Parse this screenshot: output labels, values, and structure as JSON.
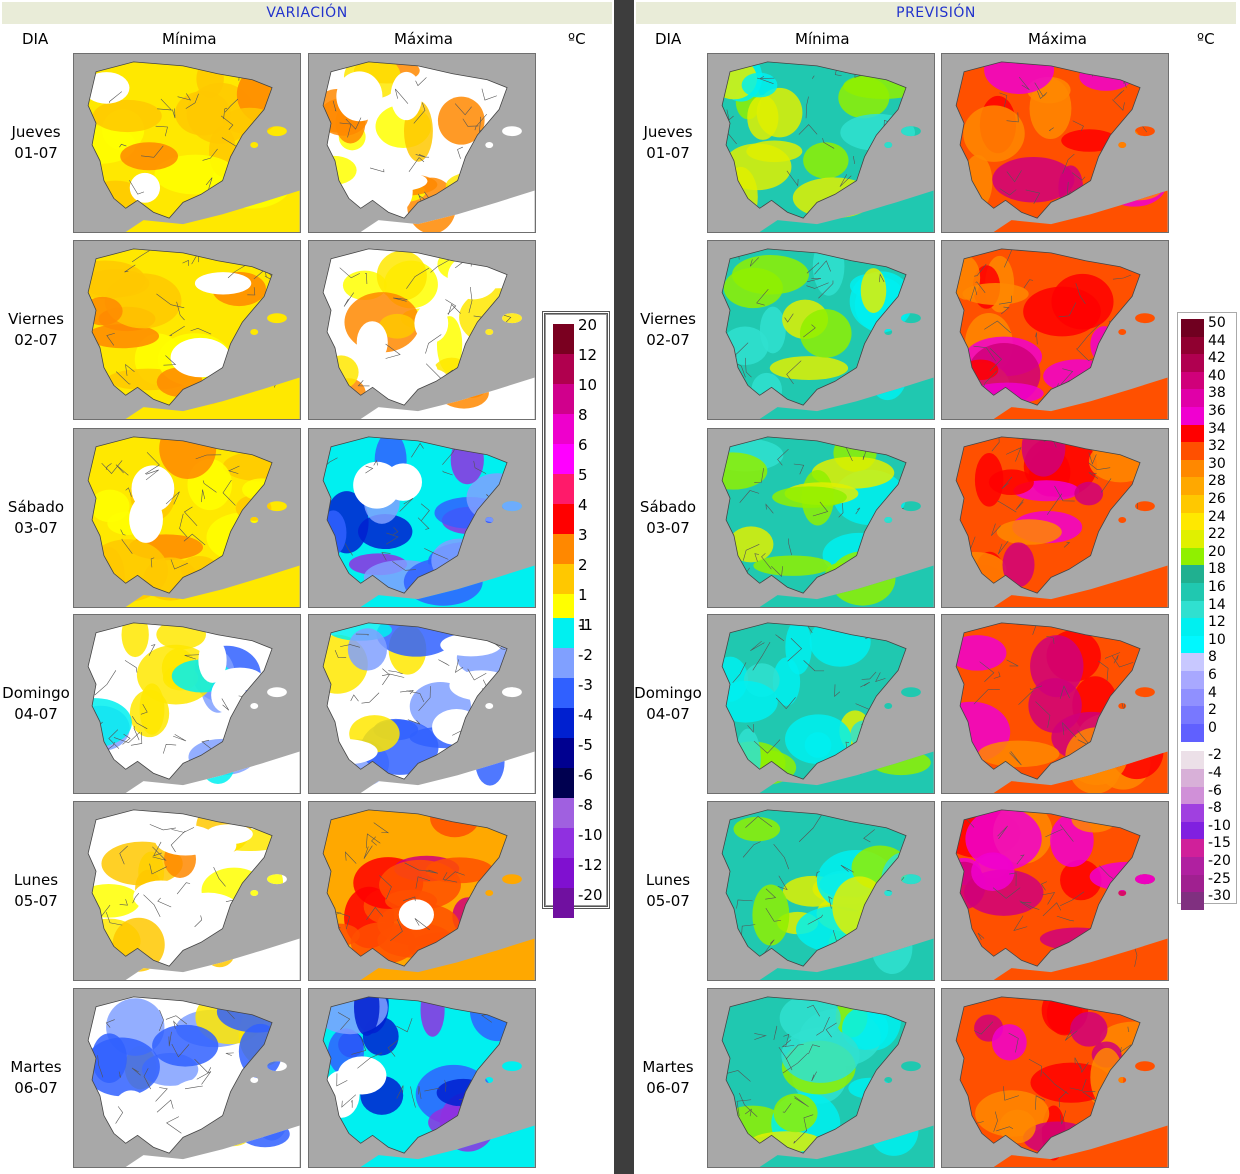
{
  "headers": {
    "variation": "VARIACIÓN",
    "forecast": "PREVISIÓN"
  },
  "columns": {
    "day": "DIA",
    "min": "Mínima",
    "max": "Máxima",
    "unit": "ºC"
  },
  "days": [
    {
      "name": "Jueves",
      "date": "01-07"
    },
    {
      "name": "Viernes",
      "date": "02-07"
    },
    {
      "name": "Sábado",
      "date": "03-07"
    },
    {
      "name": "Domingo",
      "date": "04-07"
    },
    {
      "name": "Lunes",
      "date": "05-07"
    },
    {
      "name": "Martes",
      "date": "06-07"
    }
  ],
  "legend_variation": {
    "positive": [
      {
        "label": "20",
        "color": "#7a0020"
      },
      {
        "label": "12",
        "color": "#b0004e"
      },
      {
        "label": "10",
        "color": "#d0008c"
      },
      {
        "label": "8",
        "color": "#ee00cc"
      },
      {
        "label": "6",
        "color": "#ff00ff"
      },
      {
        "label": "5",
        "color": "#ff1a6a"
      },
      {
        "label": "4",
        "color": "#ff0000"
      },
      {
        "label": "3",
        "color": "#ff8800"
      },
      {
        "label": "2",
        "color": "#ffc800"
      },
      {
        "label": "1",
        "color": "#ffff00"
      }
    ],
    "negative": [
      {
        "label": "-1",
        "color": "#00f0f0"
      },
      {
        "label": "-2",
        "color": "#80a0ff"
      },
      {
        "label": "-3",
        "color": "#3060ff"
      },
      {
        "label": "-4",
        "color": "#0020d0"
      },
      {
        "label": "-5",
        "color": "#000090"
      },
      {
        "label": "-6",
        "color": "#000050"
      },
      {
        "label": "-8",
        "color": "#a060e0"
      },
      {
        "label": "-10",
        "color": "#9030e0"
      },
      {
        "label": "-12",
        "color": "#8010d0"
      },
      {
        "label": "-20",
        "color": "#7010a0"
      }
    ]
  },
  "legend_forecast": [
    {
      "label": "50",
      "color": "#700020"
    },
    {
      "label": "44",
      "color": "#900030"
    },
    {
      "label": "42",
      "color": "#b00050"
    },
    {
      "label": "40",
      "color": "#d0007a"
    },
    {
      "label": "38",
      "color": "#e000a8"
    },
    {
      "label": "36",
      "color": "#f000d0"
    },
    {
      "label": "34",
      "color": "#ff0000"
    },
    {
      "label": "32",
      "color": "#ff5000"
    },
    {
      "label": "30",
      "color": "#ff8800"
    },
    {
      "label": "28",
      "color": "#ffa800"
    },
    {
      "label": "26",
      "color": "#ffc800"
    },
    {
      "label": "24",
      "color": "#ffe800"
    },
    {
      "label": "22",
      "color": "#e0f000"
    },
    {
      "label": "20",
      "color": "#90f000"
    },
    {
      "label": "18",
      "color": "#20b090"
    },
    {
      "label": "16",
      "color": "#20c8b0"
    },
    {
      "label": "14",
      "color": "#30e0d0"
    },
    {
      "label": "12",
      "color": "#00f0f0"
    },
    {
      "label": "10",
      "color": "#00f8ff"
    },
    {
      "label": "8",
      "color": "#c8c8ff"
    },
    {
      "label": "6",
      "color": "#a8a8ff"
    },
    {
      "label": "4",
      "color": "#9090ff"
    },
    {
      "label": "2",
      "color": "#7878ff"
    },
    {
      "label": "0",
      "color": "#6060ff"
    },
    {
      "label": "-2",
      "color": "#ece0e8"
    },
    {
      "label": "-4",
      "color": "#d8b0d8"
    },
    {
      "label": "-6",
      "color": "#d090d8"
    },
    {
      "label": "-8",
      "color": "#a040e0"
    },
    {
      "label": "-10",
      "color": "#8020e0"
    },
    {
      "label": "-15",
      "color": "#d0209a"
    },
    {
      "label": "-20",
      "color": "#b020a0"
    },
    {
      "label": "-25",
      "color": "#a02090"
    },
    {
      "label": "-30",
      "color": "#803080"
    }
  ],
  "colors": {
    "sea": "#a8a8a8",
    "land_mask": "#ffffff",
    "borders": "#555555",
    "header_bg": "#e9ecd8",
    "header_text": "#2233cc"
  },
  "maps": [
    {
      "day": "01-07",
      "var_min": "warm",
      "var_max": "mixed-warm",
      "prev_min": "cool",
      "prev_max": "hot"
    },
    {
      "day": "02-07",
      "var_min": "warm",
      "var_max": "mixed-warm",
      "prev_min": "cool",
      "prev_max": "hot"
    },
    {
      "day": "03-07",
      "var_min": "warm",
      "var_max": "cold",
      "prev_min": "cool",
      "prev_max": "hot"
    },
    {
      "day": "04-07",
      "var_min": "mixed-cool",
      "var_max": "mixed-cool",
      "prev_min": "cool",
      "prev_max": "hot"
    },
    {
      "day": "05-07",
      "var_min": "mixed-warm",
      "var_max": "very-warm",
      "prev_min": "cool",
      "prev_max": "hot"
    },
    {
      "day": "06-07",
      "var_min": "mixed-cool",
      "var_max": "cold",
      "prev_min": "cool",
      "prev_max": "hot"
    }
  ]
}
